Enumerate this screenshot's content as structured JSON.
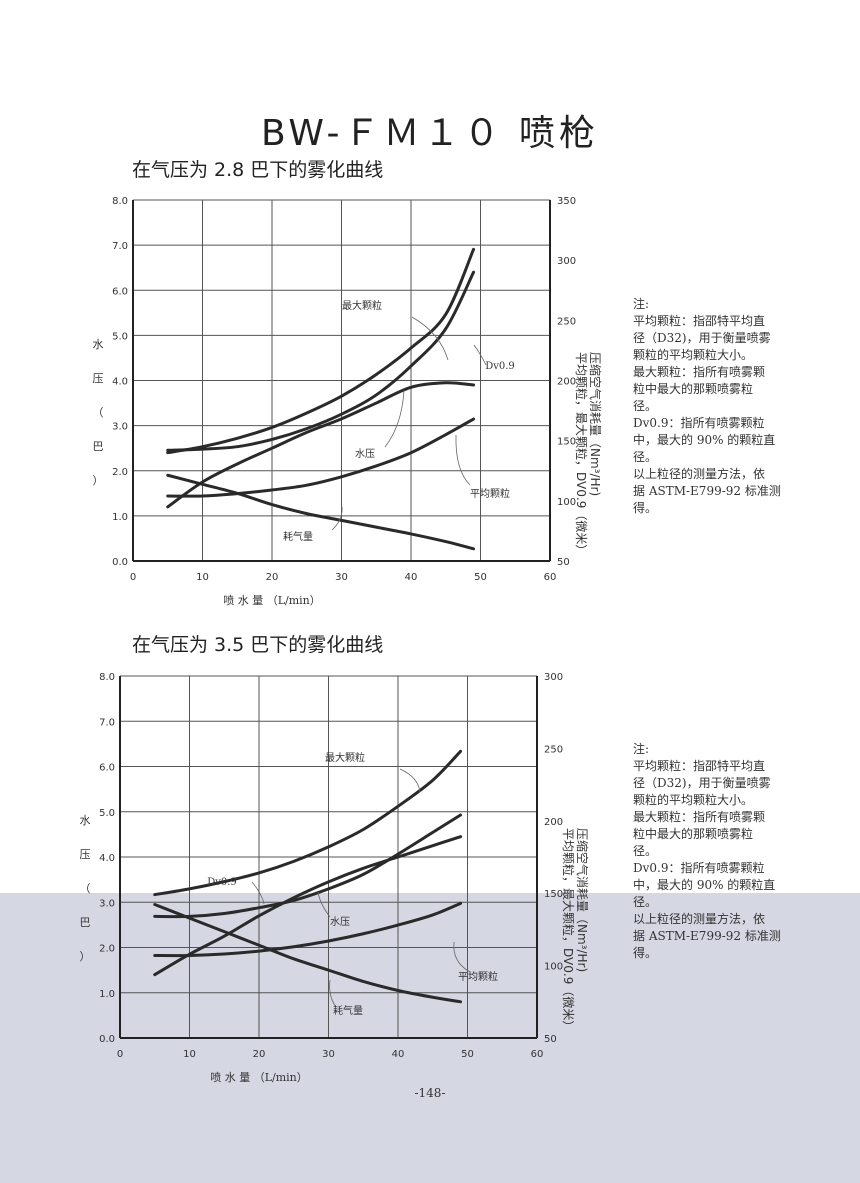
{
  "page": {
    "title": "BW-ＦＭ１０ 喷枪",
    "page_number": "-148-"
  },
  "colors": {
    "background": "#ffffff",
    "lower_scan_band": "#d5d7e3",
    "curve": "#2a2a2a",
    "grid": "#555555"
  },
  "notes": [
    [
      "注:",
      "平均颗粒：指邵特平均直",
      "径（D32)，用于衡量喷雾",
      "颗粒的平均颗粒大小。",
      "最大颗粒：指所有喷雾颗",
      "粒中最大的那颗喷雾粒",
      "径。",
      "Dv0.9：指所有喷雾颗粒",
      "中，最大的 90% 的颗粒直",
      "径。",
      "以上粒径的测量方法，依",
      "据 ASTM-E799-92 标准测",
      "得。"
    ],
    [
      "注:",
      "平均颗粒：指邵特平均直",
      "径（D32)，用于衡量喷雾",
      "颗粒的平均颗粒大小。",
      "最大颗粒：指所有喷雾颗",
      "粒中最大的那颗喷雾粒",
      "径。",
      "Dv0.9：指所有喷雾颗粒",
      "中，最大的 90% 的颗粒直",
      "径。",
      "以上粒径的测量方法，依",
      "据 ASTM-E799-92 标准测",
      "得。"
    ]
  ],
  "chart_data": [
    {
      "type": "line",
      "title": "在气压为 2.8 巴下的雾化曲线",
      "xlabel": "喷 水 量 （L/min）",
      "ylabel_left": [
        "水",
        "压",
        "（",
        "巴",
        "）"
      ],
      "ylabel_right": [
        "压缩空气消耗量（Nm³/Hr)",
        "平均颗粒，最大颗粒，DV0.9（微米）"
      ],
      "xlim": [
        0,
        60
      ],
      "ylim_left": [
        0,
        8
      ],
      "ylim_right": [
        50,
        350
      ],
      "x_ticks": [
        "0",
        "10",
        "20",
        "30",
        "40",
        "50",
        "60"
      ],
      "left_ticks": [
        "0.0",
        "1.0",
        "2.0",
        "3.0",
        "4.0",
        "5.0",
        "6.0",
        "7.0",
        "8.0"
      ],
      "right_ticks": [
        "50",
        "100",
        "150",
        "200",
        "250",
        "300",
        "350"
      ],
      "grid": true,
      "series": [
        {
          "name": "最大颗粒",
          "axis": "right",
          "x": [
            5,
            10,
            15,
            20,
            25,
            30,
            35,
            40,
            45,
            49
          ],
          "values": [
            140,
            145,
            152,
            161,
            173,
            187,
            205,
            227,
            255,
            309
          ]
        },
        {
          "name": "Dv0.9",
          "axis": "right",
          "x": [
            5,
            10,
            15,
            20,
            25,
            30,
            35,
            40,
            45,
            49
          ],
          "values": [
            142,
            143,
            145,
            151,
            160,
            172,
            188,
            212,
            243,
            290
          ]
        },
        {
          "name": "水压",
          "axis": "left",
          "x": [
            5,
            10,
            15,
            20,
            25,
            30,
            35,
            40,
            45,
            49
          ],
          "values": [
            1.2,
            1.75,
            2.15,
            2.5,
            2.85,
            3.15,
            3.5,
            3.85,
            3.95,
            3.9
          ]
        },
        {
          "name": "平均颗粒",
          "axis": "right",
          "x": [
            5,
            10,
            15,
            20,
            25,
            30,
            35,
            40,
            45,
            49
          ],
          "values": [
            104,
            104,
            106,
            109,
            113,
            120,
            129,
            140,
            155,
            168
          ]
        },
        {
          "name": "耗气量",
          "axis": "left",
          "x": [
            5,
            10,
            15,
            20,
            25,
            30,
            35,
            40,
            45,
            49
          ],
          "values": [
            1.9,
            1.7,
            1.5,
            1.25,
            1.05,
            0.9,
            0.75,
            0.6,
            0.43,
            0.27
          ]
        }
      ],
      "annotations": [
        {
          "text": "最大颗粒"
        },
        {
          "text": "Dv0.9"
        },
        {
          "text": "水压"
        },
        {
          "text": "平均颗粒"
        },
        {
          "text": "耗气量"
        }
      ]
    },
    {
      "type": "line",
      "title": "在气压为 3.5 巴下的雾化曲线",
      "xlabel": "喷 水 量 （L/min）",
      "ylabel_left": [
        "水",
        "压",
        "（",
        "巴",
        "）"
      ],
      "ylabel_right": [
        "压缩空气消耗量（Nm³/Hr)",
        "平均颗粒，最大颗粒，DV0.9（微米）"
      ],
      "xlim": [
        0,
        60
      ],
      "ylim_left": [
        0,
        8
      ],
      "ylim_right": [
        50,
        300
      ],
      "x_ticks": [
        "0",
        "10",
        "20",
        "30",
        "40",
        "50",
        "60"
      ],
      "left_ticks": [
        "0.0",
        "1.0",
        "2.0",
        "3.0",
        "4.0",
        "5.0",
        "6.0",
        "7.0",
        "8.0"
      ],
      "right_ticks": [
        "50",
        "100",
        "150",
        "200",
        "250",
        "300"
      ],
      "grid": true,
      "series": [
        {
          "name": "最大颗粒",
          "axis": "right",
          "x": [
            5,
            10,
            15,
            20,
            25,
            30,
            35,
            40,
            45,
            49
          ],
          "values": [
            149,
            153,
            158,
            164,
            172,
            182,
            194,
            210,
            228,
            248
          ]
        },
        {
          "name": "Dv0.9",
          "axis": "right",
          "x": [
            5,
            10,
            15,
            20,
            25,
            30,
            35,
            40,
            45,
            49
          ],
          "values": [
            134,
            134,
            136,
            140,
            145,
            153,
            163,
            177,
            192,
            204
          ]
        },
        {
          "name": "水压",
          "axis": "left",
          "x": [
            5,
            10,
            15,
            20,
            25,
            30,
            35,
            40,
            45,
            49
          ],
          "values": [
            1.4,
            1.85,
            2.25,
            2.7,
            3.1,
            3.45,
            3.75,
            4.0,
            4.25,
            4.45
          ]
        },
        {
          "name": "平均颗粒",
          "axis": "right",
          "x": [
            5,
            10,
            15,
            20,
            25,
            30,
            35,
            40,
            45,
            49
          ],
          "values": [
            107,
            107,
            108,
            110,
            113,
            117,
            122,
            128,
            135,
            143
          ]
        },
        {
          "name": "耗气量",
          "axis": "left",
          "x": [
            5,
            10,
            15,
            20,
            25,
            30,
            35,
            40,
            45,
            49
          ],
          "values": [
            2.95,
            2.65,
            2.35,
            2.05,
            1.75,
            1.5,
            1.25,
            1.05,
            0.9,
            0.8
          ]
        }
      ],
      "annotations": [
        {
          "text": "最大颗粒"
        },
        {
          "text": "Dv0.9"
        },
        {
          "text": "水压"
        },
        {
          "text": "平均颗粒"
        },
        {
          "text": "耗气量"
        }
      ]
    }
  ]
}
